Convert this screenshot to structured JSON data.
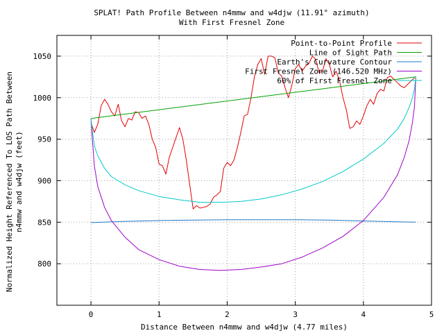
{
  "chart_data": {
    "type": "line",
    "title": "SPLAT! Path Profile Between n4mmw and w4djw (11.91° azimuth)",
    "subtitle": "With First Fresnel Zone",
    "xlabel": "Distance Between n4mmw and w4djw (4.77 miles)",
    "ylabel_line1": "Normalized Height Referenced To LOS Path Between",
    "ylabel_line2": "n4mmw and w4djw (feet)",
    "xlim": [
      -0.5,
      5
    ],
    "ylim": [
      750,
      1075
    ],
    "xticks": [
      0,
      1,
      2,
      3,
      4,
      5
    ],
    "yticks": [
      800,
      850,
      900,
      950,
      1000,
      1050
    ],
    "grid": true,
    "legend_position": "top-right",
    "series": [
      {
        "name": "Point-to-Point Profile",
        "color": "#e00000",
        "x": [
          0.0,
          0.05,
          0.1,
          0.15,
          0.2,
          0.25,
          0.3,
          0.35,
          0.4,
          0.45,
          0.5,
          0.55,
          0.6,
          0.65,
          0.7,
          0.75,
          0.8,
          0.85,
          0.9,
          0.95,
          1.0,
          1.05,
          1.1,
          1.15,
          1.2,
          1.25,
          1.3,
          1.35,
          1.4,
          1.45,
          1.5,
          1.55,
          1.6,
          1.65,
          1.7,
          1.75,
          1.8,
          1.85,
          1.9,
          1.95,
          2.0,
          2.05,
          2.1,
          2.15,
          2.2,
          2.25,
          2.3,
          2.35,
          2.4,
          2.45,
          2.5,
          2.55,
          2.6,
          2.65,
          2.7,
          2.75,
          2.8,
          2.85,
          2.9,
          2.95,
          3.0,
          3.05,
          3.1,
          3.15,
          3.2,
          3.25,
          3.3,
          3.35,
          3.4,
          3.45,
          3.5,
          3.55,
          3.6,
          3.65,
          3.7,
          3.75,
          3.8,
          3.85,
          3.9,
          3.95,
          4.0,
          4.05,
          4.1,
          4.15,
          4.2,
          4.25,
          4.3,
          4.35,
          4.4,
          4.45,
          4.5,
          4.55,
          4.6,
          4.65,
          4.7,
          4.75
        ],
        "y": [
          970,
          958,
          968,
          990,
          998,
          992,
          983,
          978,
          992,
          972,
          965,
          975,
          973,
          983,
          982,
          975,
          978,
          968,
          950,
          940,
          920,
          918,
          908,
          928,
          940,
          952,
          964,
          950,
          925,
          895,
          866,
          870,
          867,
          868,
          869,
          872,
          880,
          883,
          887,
          915,
          922,
          918,
          925,
          940,
          958,
          978,
          980,
          1000,
          1025,
          1040,
          1047,
          1028,
          1050,
          1050,
          1048,
          1030,
          1026,
          1012,
          1000,
          1015,
          1035,
          1040,
          1032,
          1038,
          1041,
          1050,
          1046,
          1030,
          1032,
          1047,
          1040,
          1025,
          1032,
          1020,
          1000,
          985,
          963,
          965,
          972,
          968,
          978,
          990,
          998,
          992,
          1005,
          1010,
          1008,
          1024,
          1026,
          1022,
          1018,
          1014,
          1012,
          1016,
          1020,
          1024
        ]
      },
      {
        "name": "Line of Sight Path",
        "color": "#00a000",
        "x": [
          0.0,
          4.77
        ],
        "y": [
          975,
          1025
        ]
      },
      {
        "name": "Earth's Curvature Contour",
        "color": "#1e78c8",
        "x": [
          0.0,
          0.5,
          1.0,
          1.5,
          2.0,
          2.5,
          3.0,
          3.5,
          4.0,
          4.5,
          4.77
        ],
        "y": [
          849.5,
          851,
          852,
          852.6,
          853,
          853,
          853,
          852.6,
          851.5,
          850.5,
          850
        ]
      },
      {
        "name": "First Fresnel Zone (146.520 MHz)",
        "color": "#a000c8",
        "x": [
          0.0,
          0.02,
          0.05,
          0.1,
          0.2,
          0.3,
          0.5,
          0.7,
          1.0,
          1.3,
          1.6,
          1.9,
          2.2,
          2.5,
          2.8,
          3.1,
          3.4,
          3.7,
          4.0,
          4.3,
          4.5,
          4.6,
          4.67,
          4.72,
          4.75,
          4.77
        ],
        "y": [
          975,
          950,
          918,
          893,
          868,
          852,
          832,
          817,
          805,
          797,
          793,
          792,
          793,
          796,
          800,
          808,
          819,
          833,
          852,
          880,
          907,
          928,
          948,
          970,
          990,
          1025
        ]
      },
      {
        "name": "60% of First Fresnel Zone",
        "color": "#00c8c8",
        "x": [
          0.0,
          0.02,
          0.05,
          0.1,
          0.2,
          0.3,
          0.5,
          0.7,
          1.0,
          1.3,
          1.6,
          1.9,
          2.2,
          2.5,
          2.8,
          3.1,
          3.4,
          3.7,
          4.0,
          4.3,
          4.5,
          4.6,
          4.67,
          4.72,
          4.75,
          4.77
        ],
        "y": [
          975,
          960,
          942,
          930,
          915,
          905,
          895,
          888,
          881,
          877,
          874,
          874,
          875,
          878,
          883,
          890,
          899,
          911,
          926,
          945,
          962,
          975,
          988,
          1000,
          1011,
          1025
        ]
      }
    ]
  }
}
